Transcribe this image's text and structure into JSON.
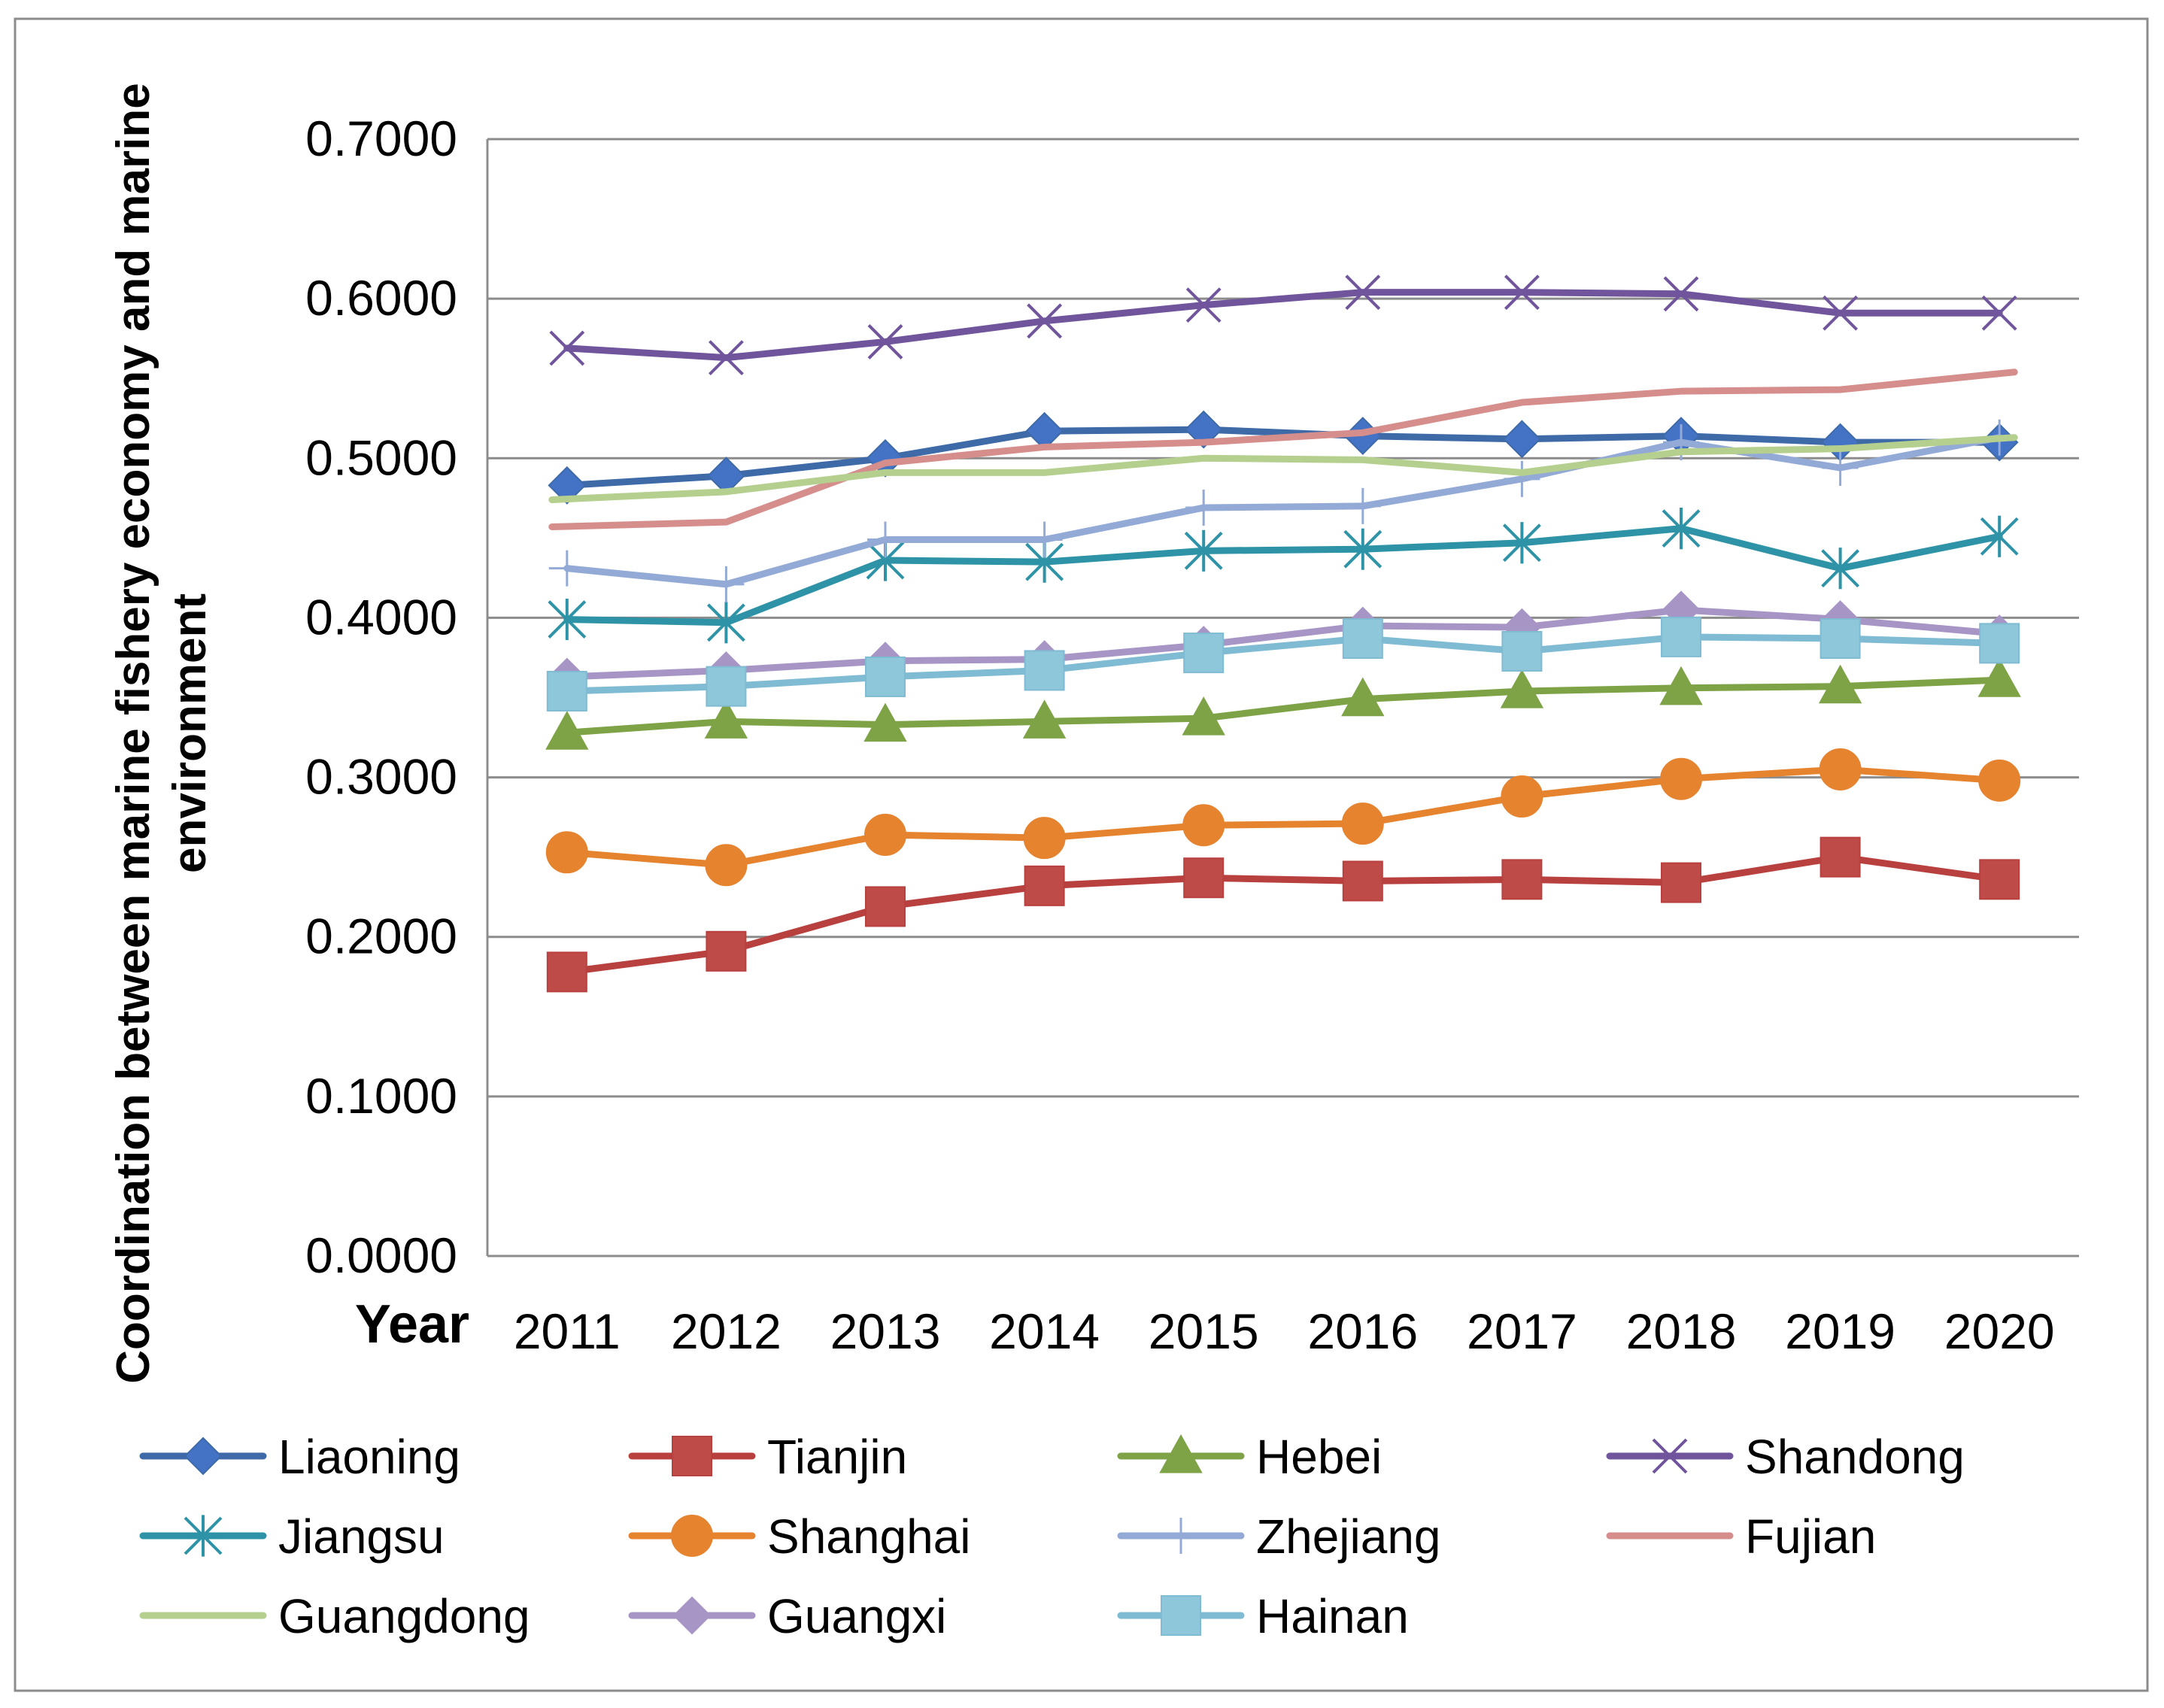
{
  "chart_data": {
    "type": "line",
    "title": "",
    "xlabel": "Year",
    "ylabel": "Coordination between marine fishery economy and marine environment",
    "ylim": [
      0,
      0.7
    ],
    "y_ticks": [
      "0.0000",
      "0.1000",
      "0.2000",
      "0.3000",
      "0.4000",
      "0.5000",
      "0.6000",
      "0.7000"
    ],
    "y_tick_values": [
      0,
      0.1,
      0.2,
      0.3,
      0.4,
      0.5,
      0.6,
      0.7
    ],
    "grid": true,
    "legend_position": "bottom",
    "categories": [
      "2011",
      "2012",
      "2013",
      "2014",
      "2015",
      "2016",
      "2017",
      "2018",
      "2019",
      "2020"
    ],
    "series": [
      {
        "name": "Liaoning",
        "color": "#4472C4",
        "stroke": "#3E6AA8",
        "marker": "diamond",
        "values": [
          0.483,
          0.489,
          0.5,
          0.517,
          0.518,
          0.514,
          0.512,
          0.514,
          0.51,
          0.51
        ]
      },
      {
        "name": "Tianjin",
        "color": "#BE4B48",
        "stroke": "#B8413F",
        "marker": "square",
        "values": [
          0.178,
          0.191,
          0.219,
          0.232,
          0.237,
          0.235,
          0.236,
          0.234,
          0.25,
          0.236
        ]
      },
      {
        "name": "Hebei",
        "color": "#7EA347",
        "stroke": "#7EA347",
        "marker": "triangle",
        "values": [
          0.328,
          0.335,
          0.333,
          0.335,
          0.337,
          0.349,
          0.354,
          0.356,
          0.357,
          0.361
        ]
      },
      {
        "name": "Shandong",
        "color": "#71559C",
        "stroke": "#71559C",
        "marker": "x",
        "values": [
          0.569,
          0.563,
          0.573,
          0.586,
          0.596,
          0.604,
          0.604,
          0.603,
          0.591,
          0.591
        ]
      },
      {
        "name": "Jiangsu",
        "color": "#2E93A6",
        "stroke": "#2E93A6",
        "marker": "star",
        "values": [
          0.399,
          0.397,
          0.436,
          0.435,
          0.442,
          0.443,
          0.447,
          0.456,
          0.431,
          0.451
        ]
      },
      {
        "name": "Shanghai",
        "color": "#E6832F",
        "stroke": "#E6832F",
        "marker": "circle",
        "values": [
          0.253,
          0.245,
          0.264,
          0.262,
          0.27,
          0.271,
          0.288,
          0.299,
          0.305,
          0.298
        ]
      },
      {
        "name": "Zhejiang",
        "color": "#94AAD6",
        "stroke": "#94AAD6",
        "marker": "plus",
        "values": [
          0.431,
          0.421,
          0.449,
          0.449,
          0.469,
          0.47,
          0.487,
          0.51,
          0.494,
          0.513
        ]
      },
      {
        "name": "Fujian",
        "color": "#D58E8C",
        "stroke": "#D58E8C",
        "marker": "none",
        "values": [
          0.457,
          0.46,
          0.497,
          0.507,
          0.51,
          0.516,
          0.535,
          0.542,
          0.543,
          0.554
        ]
      },
      {
        "name": "Guangdong",
        "color": "#B4CF8E",
        "stroke": "#B4CF8E",
        "marker": "none",
        "values": [
          0.474,
          0.479,
          0.491,
          0.491,
          0.5,
          0.499,
          0.491,
          0.504,
          0.506,
          0.513
        ]
      },
      {
        "name": "Guangxi",
        "color": "#A795C5",
        "stroke": "#A795C5",
        "marker": "diamond",
        "values": [
          0.363,
          0.367,
          0.373,
          0.374,
          0.383,
          0.395,
          0.394,
          0.405,
          0.399,
          0.39
        ]
      },
      {
        "name": "Hainan",
        "color": "#8EC6DA",
        "stroke": "#7FBBD2",
        "marker": "square",
        "values": [
          0.354,
          0.357,
          0.363,
          0.367,
          0.378,
          0.387,
          0.379,
          0.388,
          0.387,
          0.384
        ]
      }
    ]
  }
}
